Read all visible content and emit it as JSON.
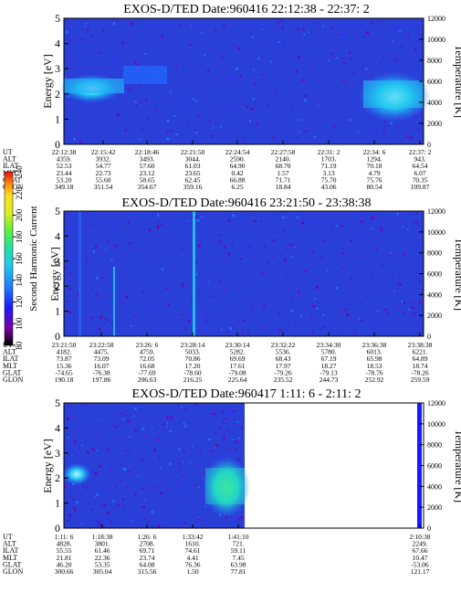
{
  "colorbar": {
    "label": "Second Harmonic Current",
    "ticks": [
      "80",
      "100",
      "120",
      "140",
      "160",
      "180",
      "200",
      "220",
      "240"
    ],
    "colors": [
      "#000000",
      "#7a00a8",
      "#1a1aff",
      "#1f7fff",
      "#22c8f0",
      "#22e0a0",
      "#5cf040",
      "#d8f020",
      "#ffe020",
      "#ff8c10",
      "#e81010"
    ]
  },
  "panels": [
    {
      "title": "EXOS-D/TED   Date:960416  22:12:38 - 22:37: 2",
      "ylabel": "Energy [eV]",
      "y2label": "Temperature [K]",
      "yticks": [
        "0",
        "1",
        "2",
        "3",
        "4",
        "5"
      ],
      "y2ticks": [
        "0",
        "2000",
        "4000",
        "6000",
        "8000",
        "10000",
        "12000"
      ],
      "row_labels": [
        "UT",
        "ALT",
        "ILAT",
        "MLT",
        "GLAT",
        "GLON"
      ],
      "columns": [
        [
          "22:12:38",
          "4359.",
          "52.53",
          "23.44",
          "53.20",
          "349.18"
        ],
        [
          "22:15:42",
          "3932.",
          "54.77",
          "22.73",
          "55.60",
          "351.54"
        ],
        [
          "22:18:46",
          "3493.",
          "57.60",
          "23.12",
          "58.65",
          "354.67"
        ],
        [
          "22:21:50",
          "3044.",
          "61.03",
          "23.65",
          "62.45",
          "359.16"
        ],
        [
          "22:24:54",
          "2590.",
          "64.90",
          "0.42",
          "66.88",
          "6.25"
        ],
        [
          "22:27:58",
          "2140.",
          "68.70",
          "1.57",
          "71.71",
          "18.84"
        ],
        [
          "22:31: 2",
          "1703.",
          "71.19",
          "3.13",
          "75.70",
          "43.06"
        ],
        [
          "22:34: 6",
          "1294.",
          "70.18",
          "4.79",
          "75.76",
          "80.54"
        ],
        [
          "22:37: 2",
          "943.",
          "64.54",
          "6.07",
          "70.35",
          "109.87"
        ]
      ]
    },
    {
      "title": "EXOS-D/TED   Date:960416  23:21:50 - 23:38:38",
      "ylabel": "Energy [eV]",
      "y2label": "Temperature [K]",
      "yticks": [
        "0",
        "1",
        "2",
        "3",
        "4",
        "5"
      ],
      "y2ticks": [
        "0",
        "2000",
        "4000",
        "6000",
        "8000",
        "10000",
        "12000"
      ],
      "row_labels": [
        "UT",
        "ALT",
        "ILAT",
        "MLT",
        "GLAT",
        "GLON"
      ],
      "columns": [
        [
          "23:21:50",
          "4182.",
          "73.87",
          "15.36",
          "-74.65",
          "190.18"
        ],
        [
          "23:22:58",
          "4475.",
          "73.09",
          "16.07",
          "-76.38",
          "197.86"
        ],
        [
          "23:26: 6",
          "4759.",
          "72.05",
          "16.68",
          "-77.69",
          "206.63"
        ],
        [
          "23:28:14",
          "5033.",
          "70.86",
          "17.20",
          "-78.60",
          "216.25"
        ],
        [
          "23:30:14",
          "5282.",
          "69.69",
          "17.61",
          "-79.08",
          "225.64"
        ],
        [
          "23:32:22",
          "5536.",
          "68.43",
          "17.97",
          "-79.26",
          "235.52"
        ],
        [
          "23:34:30",
          "5780.",
          "67.19",
          "18.27",
          "-79.13",
          "244.73"
        ],
        [
          "23:36:38",
          "6013.",
          "65.98",
          "18.53",
          "-78.76",
          "252.92"
        ],
        [
          "23:38:38",
          "6221.",
          "64.89",
          "18.74",
          "-78.26",
          "259.59"
        ]
      ]
    },
    {
      "title": "EXOS-D/TED   Date:960417  1:11: 6 - 2:11: 2",
      "ylabel": "Energy [eV]",
      "y2label": "Temperature [K]",
      "yticks": [
        "0",
        "1",
        "2",
        "3",
        "4",
        "5"
      ],
      "y2ticks": [
        "0",
        "2000",
        "4000",
        "6000",
        "8000",
        "10000",
        "12000"
      ],
      "row_labels": [
        "UT",
        "ALT",
        "ILAT",
        "MLT",
        "GLAT",
        "GLON"
      ],
      "columns": [
        [
          "1:11: 6",
          "4828.",
          "55.55",
          "21.81",
          "46.20",
          "300.66"
        ],
        [
          "1:18:38",
          "3801.",
          "61.46",
          "22.36",
          "53.35",
          "305.04"
        ],
        [
          "1:26: 6",
          "2708.",
          "69.71",
          "23.74",
          "64.08",
          "315.56"
        ],
        [
          "1:33:42",
          "1610.",
          "74.61",
          "4.41",
          "76.36",
          "1.50"
        ],
        [
          "1:41:10",
          "721.",
          "59.11",
          "7.45",
          "63.98",
          "77.81"
        ],
        [
          "2:10:38",
          "2249.",
          "67.66",
          "10.47",
          "-53.06",
          "121.17"
        ]
      ]
    }
  ]
}
